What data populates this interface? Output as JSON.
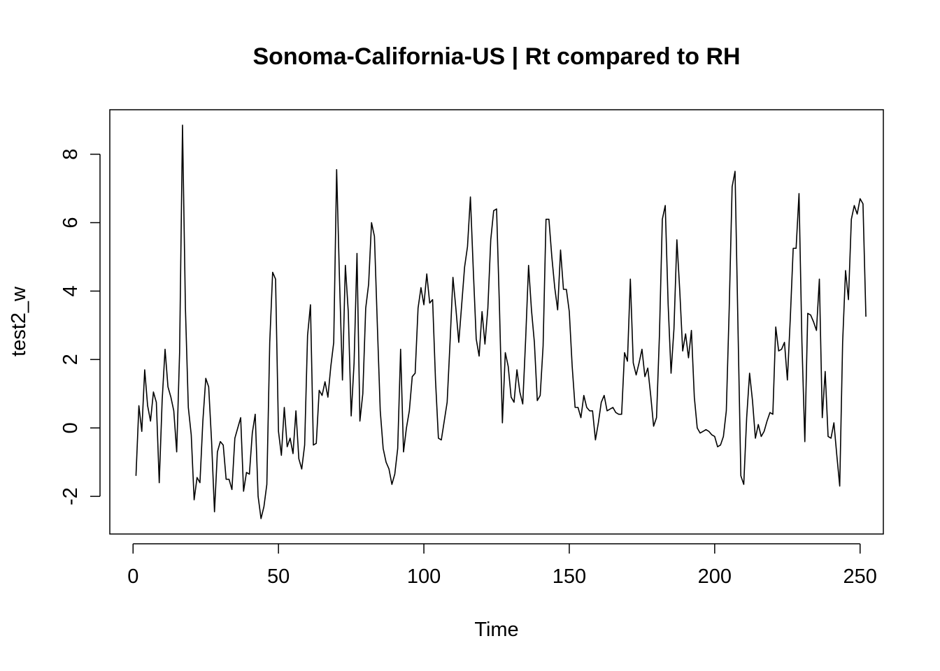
{
  "chart_data": {
    "type": "line",
    "title": "Sonoma-California-US | Rt compared to RH",
    "xlabel": "Time",
    "ylabel": "test2_w",
    "xlim": [
      -8,
      258
    ],
    "ylim": [
      -3.1,
      9.3
    ],
    "x_ticks": [
      0,
      50,
      100,
      150,
      200,
      250
    ],
    "y_ticks": [
      -2,
      0,
      2,
      4,
      6,
      8
    ],
    "x_tick_labels": [
      "0",
      "50",
      "100",
      "150",
      "200",
      "250"
    ],
    "y_tick_labels": [
      "-2",
      "0",
      "2",
      "4",
      "6",
      "8"
    ],
    "grid": false,
    "series": [
      {
        "x_start": 1,
        "values": [
          -1.4,
          0.65,
          -0.1,
          1.7,
          0.65,
          0.2,
          1.05,
          0.75,
          -1.6,
          0.8,
          2.3,
          1.2,
          0.9,
          0.5,
          -0.7,
          2.2,
          8.85,
          3.5,
          0.6,
          -0.2,
          -2.1,
          -1.45,
          -1.6,
          0.2,
          1.45,
          1.2,
          -0.4,
          -2.45,
          -0.7,
          -0.4,
          -0.5,
          -1.5,
          -1.5,
          -1.8,
          -0.3,
          0.0,
          0.3,
          -1.85,
          -1.3,
          -1.35,
          -0.15,
          0.4,
          -2.0,
          -2.65,
          -2.3,
          -1.65,
          2.5,
          4.55,
          4.35,
          -0.1,
          -0.8,
          0.6,
          -0.55,
          -0.3,
          -0.75,
          0.5,
          -0.9,
          -1.2,
          -0.5,
          2.7,
          3.6,
          -0.5,
          -0.45,
          1.1,
          0.95,
          1.35,
          0.9,
          1.8,
          2.5,
          7.55,
          4.3,
          1.4,
          4.75,
          3.4,
          0.35,
          1.9,
          5.1,
          0.2,
          1.0,
          3.5,
          4.2,
          6.0,
          5.6,
          3.0,
          0.5,
          -0.6,
          -1.0,
          -1.2,
          -1.65,
          -1.35,
          -0.6,
          2.3,
          -0.7,
          0.0,
          0.5,
          1.5,
          1.6,
          3.5,
          4.1,
          3.6,
          4.5,
          3.65,
          3.75,
          1.4,
          -0.3,
          -0.35,
          0.2,
          0.75,
          2.5,
          4.4,
          3.5,
          2.5,
          3.6,
          4.7,
          5.3,
          6.75,
          4.6,
          2.6,
          2.1,
          3.4,
          2.45,
          3.5,
          5.5,
          6.35,
          6.4,
          3.5,
          0.15,
          2.2,
          1.8,
          0.9,
          0.75,
          1.7,
          1.05,
          0.7,
          2.6,
          4.75,
          3.45,
          2.5,
          0.8,
          0.95,
          2.4,
          6.1,
          6.1,
          5.0,
          4.1,
          3.45,
          5.2,
          4.05,
          4.05,
          3.4,
          1.8,
          0.6,
          0.6,
          0.3,
          0.95,
          0.6,
          0.5,
          0.5,
          -0.35,
          0.15,
          0.75,
          0.95,
          0.5,
          0.55,
          0.6,
          0.45,
          0.4,
          0.4,
          2.2,
          1.95,
          4.35,
          1.9,
          1.55,
          1.9,
          2.3,
          1.5,
          1.75,
          0.95,
          0.05,
          0.3,
          2.7,
          6.1,
          6.5,
          3.6,
          1.6,
          2.9,
          5.5,
          4.0,
          2.25,
          2.75,
          2.05,
          2.85,
          0.9,
          0.0,
          -0.15,
          -0.1,
          -0.05,
          -0.1,
          -0.2,
          -0.25,
          -0.55,
          -0.5,
          -0.25,
          0.5,
          3.5,
          7.05,
          7.5,
          3.0,
          -1.4,
          -1.65,
          0.3,
          1.6,
          0.8,
          -0.3,
          0.1,
          -0.25,
          -0.1,
          0.2,
          0.45,
          0.4,
          2.95,
          2.25,
          2.3,
          2.5,
          1.4,
          3.2,
          5.25,
          5.25,
          6.85,
          2.5,
          -0.4,
          3.35,
          3.3,
          3.1,
          2.85,
          4.35,
          0.3,
          1.65,
          -0.25,
          -0.3,
          0.15,
          -0.8,
          -1.7,
          2.5,
          4.6,
          3.75,
          6.1,
          6.5,
          6.25,
          6.7,
          6.55,
          3.25
        ]
      }
    ]
  }
}
